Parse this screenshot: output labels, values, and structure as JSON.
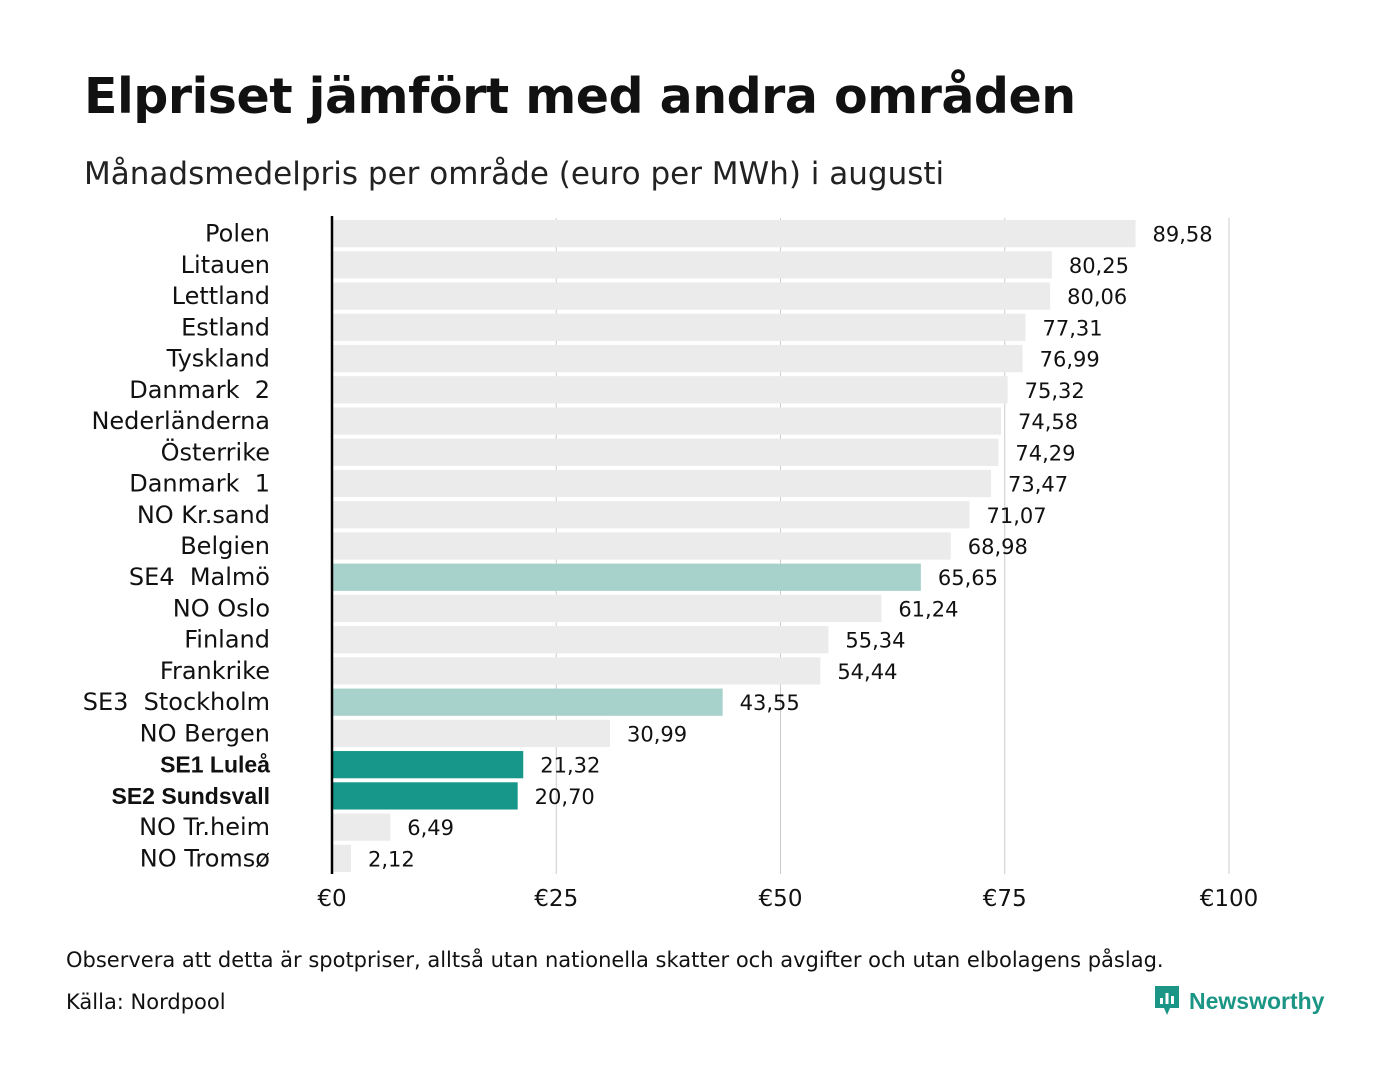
{
  "title": "Elpriset jämfört med andra områden",
  "subtitle": "Månadsmedelpris per område (euro per MWh) i augusti",
  "note": "Observera att detta är spotpriser, alltså utan nationella skatter och avgifter och utan elbolagens påslag.",
  "source": "Källa: Nordpool",
  "brand": "Newsworthy",
  "colors": {
    "default_bar": "#ebebeb",
    "light_teal": "#a6d2cb",
    "dark_teal": "#16978a",
    "brand": "#1b9585",
    "grid": "#cccccc",
    "axis": "#000000"
  },
  "chart_data": {
    "type": "bar",
    "orientation": "horizontal",
    "title": "Elpriset jämfört med andra områden",
    "subtitle": "Månadsmedelpris per område (euro per MWh) i augusti",
    "categories": [
      "Polen",
      "Litauen",
      "Lettland",
      "Estland",
      "Tyskland",
      "Danmark  2",
      "Nederländerna",
      "Österrike",
      "Danmark  1",
      "NO Kr.sand",
      "Belgien",
      "SE4  Malmö",
      "NO Oslo",
      "Finland",
      "Frankrike",
      "SE3  Stockholm",
      "NO Bergen",
      "SE1 Luleå",
      "SE2 Sundsvall",
      "NO Tr.heim",
      "NO Tromsø"
    ],
    "values": [
      89.58,
      80.25,
      80.06,
      77.31,
      76.99,
      75.32,
      74.58,
      74.29,
      73.47,
      71.07,
      68.98,
      65.65,
      61.24,
      55.34,
      54.44,
      43.55,
      30.99,
      21.32,
      20.7,
      6.49,
      2.12
    ],
    "value_labels": [
      "89,58",
      "80,25",
      "80,06",
      "77,31",
      "76,99",
      "75,32",
      "74,58",
      "74,29",
      "73,47",
      "71,07",
      "68,98",
      "65,65",
      "61,24",
      "55,34",
      "54,44",
      "43,55",
      "30,99",
      "21,32",
      "20,70",
      "6,49",
      "2,12"
    ],
    "highlight": [
      "none",
      "none",
      "none",
      "none",
      "none",
      "none",
      "none",
      "none",
      "none",
      "none",
      "none",
      "light",
      "none",
      "none",
      "none",
      "light",
      "none",
      "dark",
      "dark",
      "none",
      "none"
    ],
    "bold_labels": [
      "no",
      "no",
      "no",
      "no",
      "no",
      "no",
      "no",
      "no",
      "no",
      "no",
      "no",
      "no",
      "no",
      "no",
      "no",
      "no",
      "no",
      "yes",
      "yes",
      "no",
      "no"
    ],
    "xlim": [
      0,
      100
    ],
    "x_ticks": [
      0,
      25,
      50,
      75,
      100
    ],
    "x_tick_labels": [
      "€0",
      "€25",
      "€50",
      "€75",
      "€100"
    ],
    "grid": "vertical"
  }
}
